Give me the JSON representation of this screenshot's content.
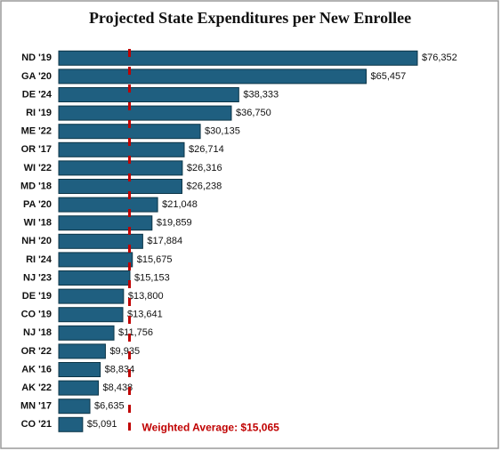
{
  "chart_data": {
    "type": "bar",
    "orientation": "horizontal",
    "title": "Projected State Expenditures per New Enrollee",
    "categories": [
      "ND '19",
      "GA '20",
      "DE '24",
      "RI '19",
      "ME '22",
      "OR '17",
      "WI '22",
      "MD '18",
      "PA '20",
      "WI '18",
      "NH '20",
      "RI '24",
      "NJ '23",
      "DE '19",
      "CO '19",
      "NJ '18",
      "OR '22",
      "AK '16",
      "AK '22",
      "MN '17",
      "CO '21"
    ],
    "values": [
      76352,
      65457,
      38333,
      36750,
      30135,
      26714,
      26316,
      26238,
      21048,
      19859,
      17884,
      15675,
      15153,
      13800,
      13641,
      11756,
      9935,
      8834,
      8438,
      6635,
      5091
    ],
    "value_labels": [
      "$76,352",
      "$65,457",
      "$38,333",
      "$36,750",
      "$30,135",
      "$26,714",
      "$26,316",
      "$26,238",
      "$21,048",
      "$19,859",
      "$17,884",
      "$15,675",
      "$15,153",
      "$13,800",
      "$13,641",
      "$11,756",
      "$9,935",
      "$8,834",
      "$8,438",
      "$6,635",
      "$5,091"
    ],
    "color": "#1f5f80",
    "average": {
      "value": 15065,
      "label": "Weighted Average: $15,065",
      "color": "#c00000"
    }
  }
}
